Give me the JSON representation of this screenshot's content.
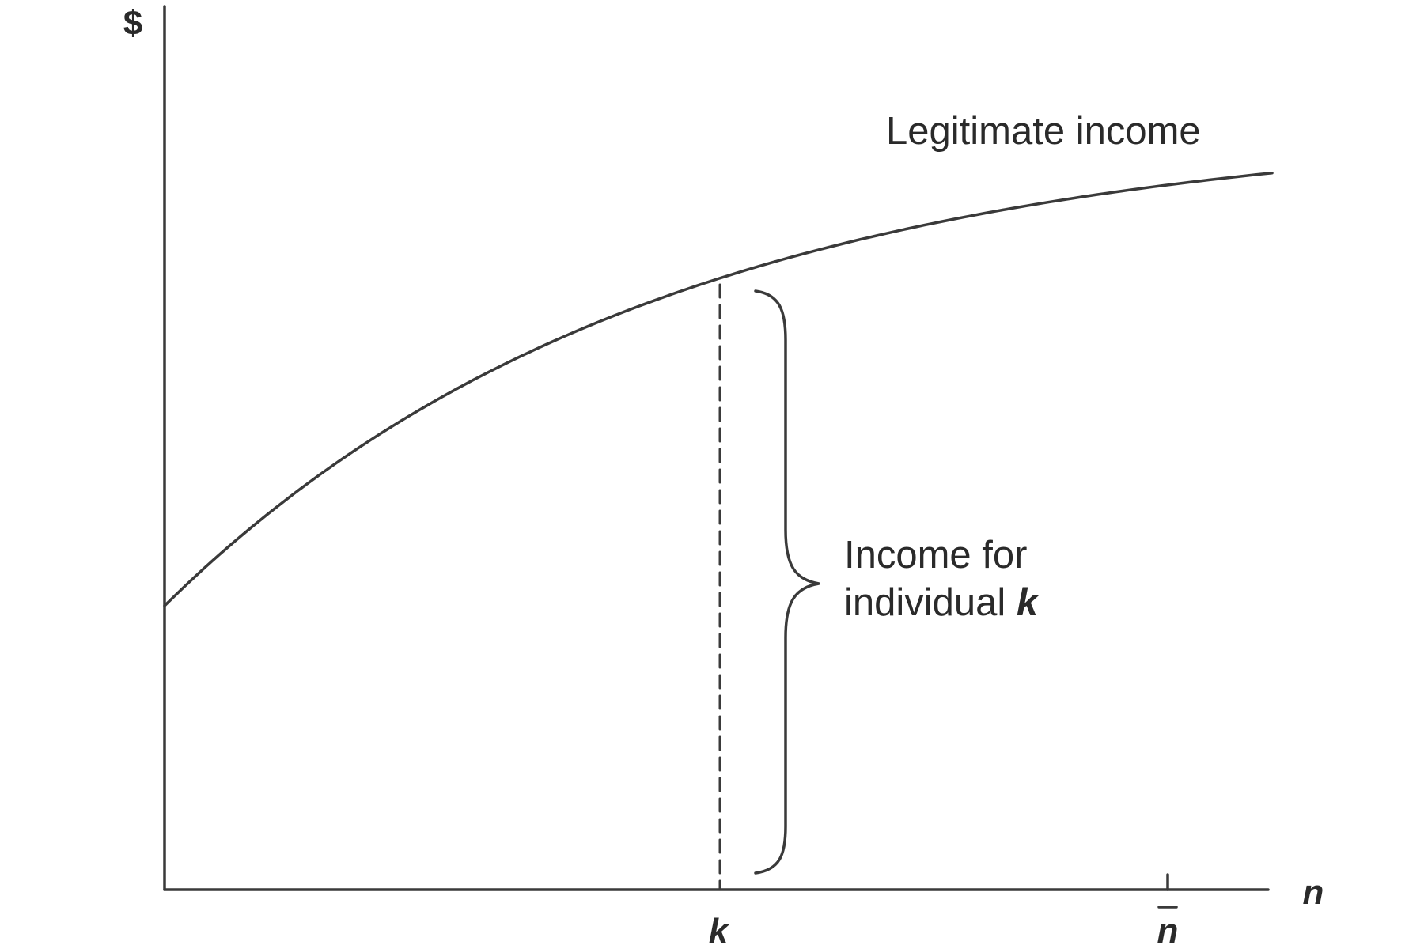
{
  "chart_data": {
    "type": "line",
    "title": "",
    "ylabel": "$",
    "xlabel": "n",
    "x_ticks": [
      {
        "value": "k",
        "label": "k"
      },
      {
        "value": "n̄",
        "label": "n̄"
      }
    ],
    "series": [
      {
        "name": "Legitimate income",
        "shape": "increasing, concave; starts above zero at the vertical axis and flattens toward n̄"
      }
    ],
    "annotations": [
      {
        "text_line1": "Income for",
        "text_line2_prefix": "individual ",
        "text_line2_var": "k"
      }
    ],
    "grid": false,
    "legend": "none"
  }
}
